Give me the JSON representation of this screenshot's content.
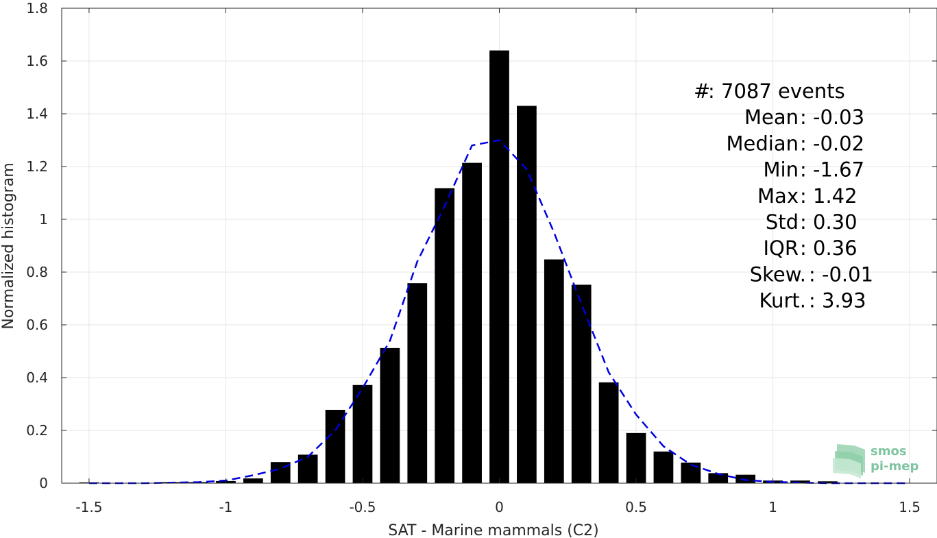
{
  "chart_data": {
    "type": "bar",
    "xlabel": "SAT - Marine mammals (C2)",
    "ylabel": "Normalized histogram",
    "xlim": [
      -1.6,
      1.6
    ],
    "ylim": [
      0,
      1.8
    ],
    "xticks": [
      -1.5,
      -1,
      -0.5,
      0,
      0.5,
      1,
      1.5
    ],
    "xtick_labels": [
      "-1.5",
      "-1",
      "-0.5",
      "0",
      "0.5",
      "1",
      "1.5"
    ],
    "yticks": [
      0,
      0.2,
      0.4,
      0.6,
      0.8,
      1,
      1.2,
      1.4,
      1.6,
      1.8
    ],
    "ytick_labels": [
      "0",
      "0.2",
      "0.4",
      "0.6",
      "0.8",
      "1",
      "1.2",
      "1.4",
      "1.6",
      "1.8"
    ],
    "grid": true,
    "bar_color": "#000000",
    "bars": {
      "x": [
        -1.5,
        -1.4,
        -1.3,
        -1.2,
        -1.1,
        -1.0,
        -0.9,
        -0.8,
        -0.7,
        -0.6,
        -0.5,
        -0.4,
        -0.3,
        -0.2,
        -0.1,
        0.0,
        0.1,
        0.2,
        0.3,
        0.4,
        0.5,
        0.6,
        0.7,
        0.8,
        0.9,
        1.0,
        1.1,
        1.2,
        1.3,
        1.4,
        1.5
      ],
      "values": [
        0.003,
        0.0,
        0.0,
        0.004,
        0.004,
        0.008,
        0.018,
        0.08,
        0.108,
        0.278,
        0.372,
        0.512,
        0.758,
        1.118,
        1.214,
        1.64,
        1.43,
        0.848,
        0.752,
        0.382,
        0.19,
        0.12,
        0.078,
        0.038,
        0.032,
        0.01,
        0.01,
        0.007,
        0.0,
        0.0,
        0.0
      ]
    },
    "fit": {
      "style": "dashed",
      "color": "#0000e0",
      "x": [
        -1.5,
        -1.4,
        -1.3,
        -1.2,
        -1.1,
        -1.0,
        -0.9,
        -0.8,
        -0.7,
        -0.6,
        -0.5,
        -0.4,
        -0.3,
        -0.2,
        -0.1,
        0.0,
        0.1,
        0.2,
        0.3,
        0.4,
        0.5,
        0.6,
        0.7,
        0.8,
        0.9,
        1.0,
        1.1,
        1.2,
        1.3,
        1.4,
        1.5
      ],
      "y": [
        0.0,
        0.0,
        0.0,
        0.002,
        0.004,
        0.01,
        0.03,
        0.055,
        0.1,
        0.2,
        0.36,
        0.54,
        0.84,
        1.05,
        1.28,
        1.3,
        1.19,
        0.95,
        0.68,
        0.42,
        0.26,
        0.14,
        0.07,
        0.035,
        0.012,
        0.005,
        0.002,
        0.0,
        0.0,
        0.0,
        0.0
      ]
    },
    "stats": [
      {
        "label": "#  ",
        "value": ": 7087 events"
      },
      {
        "label": "Mean",
        "value": ": -0.03"
      },
      {
        "label": "Median",
        "value": ": -0.02"
      },
      {
        "label": "Min",
        "value": ": -1.67"
      },
      {
        "label": "Max",
        "value": ": 1.42"
      },
      {
        "label": "Std",
        "value": ": 0.30"
      },
      {
        "label": "IQR",
        "value": ": 0.36"
      },
      {
        "label": "Skew.",
        "value": ": -0.01"
      },
      {
        "label": "Kurt.",
        "value": ": 3.93"
      }
    ]
  },
  "logo": {
    "line1": "smos",
    "line2": "pi-mep",
    "color": "#7fc4a0"
  }
}
